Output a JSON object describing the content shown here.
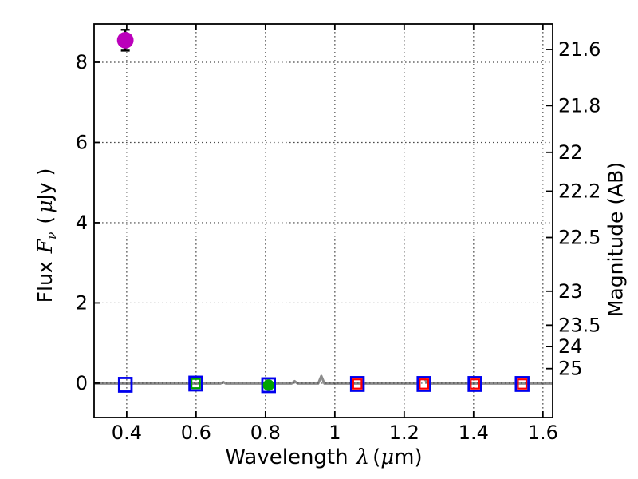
{
  "chart_data": {
    "type": "scatter",
    "title": "",
    "xlabel": "Wavelength λ (μm)",
    "ylabel_left": "Flux Fν ( μJy )",
    "ylabel_right": "Magnitude (AB)",
    "xlim": [
      0.306,
      1.628
    ],
    "ylim": [
      -0.857,
      8.955
    ],
    "grid": {
      "on": true,
      "style": "dotted",
      "color": "#4a4a4a"
    },
    "xticks": [
      {
        "value": 0.4,
        "label": "0.4"
      },
      {
        "value": 0.6,
        "label": "0.6"
      },
      {
        "value": 0.8,
        "label": "0.8"
      },
      {
        "value": 1.0,
        "label": "1"
      },
      {
        "value": 1.2,
        "label": "1.2"
      },
      {
        "value": 1.4,
        "label": "1.4"
      },
      {
        "value": 1.6,
        "label": "1.6"
      }
    ],
    "yticks_left": [
      {
        "value": 0,
        "label": "0"
      },
      {
        "value": 2,
        "label": "2"
      },
      {
        "value": 4,
        "label": "4"
      },
      {
        "value": 6,
        "label": "6"
      },
      {
        "value": 8,
        "label": "8"
      }
    ],
    "yticks_right": [
      {
        "flux": 8.318,
        "label": "21.6"
      },
      {
        "flux": 6.918,
        "label": "21.8"
      },
      {
        "flux": 5.754,
        "label": "22"
      },
      {
        "flux": 4.786,
        "label": "22.2"
      },
      {
        "flux": 3.631,
        "label": "22.5"
      },
      {
        "flux": 2.291,
        "label": "23"
      },
      {
        "flux": 1.445,
        "label": "23.5"
      },
      {
        "flux": 0.912,
        "label": "24"
      },
      {
        "flux": 0.363,
        "label": "25"
      }
    ],
    "series": [
      {
        "name": "model-spectrum",
        "type": "line",
        "color": "#8c8c8c",
        "width": 3,
        "points": [
          [
            0.306,
            -0.01
          ],
          [
            0.67,
            -0.01
          ],
          [
            0.678,
            0.03
          ],
          [
            0.686,
            -0.01
          ],
          [
            0.875,
            -0.01
          ],
          [
            0.884,
            0.05
          ],
          [
            0.893,
            -0.01
          ],
          [
            0.952,
            -0.01
          ],
          [
            0.961,
            0.18
          ],
          [
            0.97,
            -0.01
          ],
          [
            1.235,
            -0.01
          ],
          [
            1.248,
            0.11
          ],
          [
            1.258,
            0.12
          ],
          [
            1.268,
            -0.01
          ],
          [
            1.628,
            -0.01
          ]
        ]
      },
      {
        "name": "detection-point",
        "type": "circle",
        "color": "#bb00bb",
        "radius": 10.4,
        "errorbar_color": "#000000",
        "points": [
          {
            "x": 0.396,
            "y": 8.55,
            "yerr": 0.26
          }
        ]
      },
      {
        "name": "blue-open-squares",
        "type": "open-square",
        "color": "#0000ee",
        "size": 17,
        "stroke": 2.8,
        "points": [
          {
            "x": 0.396,
            "y": -0.04
          },
          {
            "x": 0.599,
            "y": -0.01
          },
          {
            "x": 0.809,
            "y": -0.05
          },
          {
            "x": 1.065,
            "y": -0.02
          },
          {
            "x": 1.257,
            "y": -0.02
          },
          {
            "x": 1.404,
            "y": -0.02
          },
          {
            "x": 1.54,
            "y": -0.02
          }
        ]
      },
      {
        "name": "green-open-square",
        "type": "open-square",
        "color": "#00a400",
        "size": 11.5,
        "stroke": 2.2,
        "points": [
          {
            "x": 0.599,
            "y": -0.01
          }
        ]
      },
      {
        "name": "red-open-squares",
        "type": "open-square",
        "color": "#ff0000",
        "size": 11.5,
        "stroke": 2.2,
        "points": [
          {
            "x": 1.065,
            "y": -0.02
          },
          {
            "x": 1.257,
            "y": -0.02
          },
          {
            "x": 1.404,
            "y": -0.02
          },
          {
            "x": 1.54,
            "y": -0.02
          }
        ]
      },
      {
        "name": "green-point",
        "type": "circle",
        "color": "#00a400",
        "radius": 7.2,
        "errorbar_color": "#000000",
        "points": [
          {
            "x": 0.809,
            "y": -0.05,
            "yerr": 0.05
          }
        ]
      }
    ]
  },
  "labels": {
    "xlabel_word": "Wavelength",
    "xlabel_lambda": "λ",
    "xlabel_open": "(",
    "xlabel_mu": "μ",
    "xlabel_close": "m)",
    "ylabel_flux_word": "Flux",
    "ylabel_F": "F",
    "ylabel_nu": "ν",
    "ylabel_open": "(",
    "ylabel_mu": "μ",
    "ylabel_units": "Jy )",
    "ylabel_right": "Magnitude (AB)"
  }
}
